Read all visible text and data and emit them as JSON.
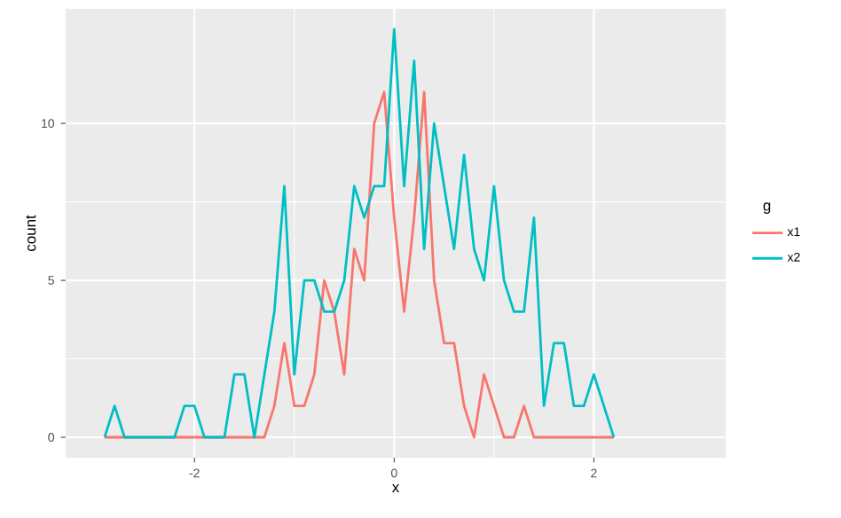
{
  "chart_data": {
    "type": "line",
    "xlabel": "x",
    "ylabel": "count",
    "legend_title": "g",
    "x": [
      -2.9,
      -2.8,
      -2.7,
      -2.6,
      -2.5,
      -2.4,
      -2.3,
      -2.2,
      -2.1,
      -2.0,
      -1.9,
      -1.8,
      -1.7,
      -1.6,
      -1.5,
      -1.4,
      -1.3,
      -1.2,
      -1.1,
      -1.0,
      -0.9,
      -0.8,
      -0.7,
      -0.6,
      -0.5,
      -0.4,
      -0.3,
      -0.2,
      -0.1,
      0.0,
      0.1,
      0.2,
      0.3,
      0.4,
      0.5,
      0.6,
      0.7,
      0.8,
      0.9,
      1.0,
      1.1,
      1.2,
      1.3,
      1.4,
      1.5,
      1.6,
      1.7,
      1.8,
      1.9,
      2.0,
      2.1,
      2.2
    ],
    "series": [
      {
        "name": "x1",
        "color": "#f8766d",
        "values": [
          0,
          0,
          0,
          0,
          0,
          0,
          0,
          0,
          0,
          0,
          0,
          0,
          0,
          0,
          0,
          0,
          0,
          1,
          3,
          1,
          1,
          2,
          5,
          4,
          2,
          6,
          5,
          10,
          11,
          7,
          4,
          7,
          11,
          5,
          3,
          3,
          1,
          0,
          2,
          1,
          0,
          0,
          1,
          0,
          0,
          0,
          0,
          0,
          0,
          0,
          0,
          0
        ]
      },
      {
        "name": "x2",
        "color": "#00bfc4",
        "values": [
          0,
          1,
          0,
          0,
          0,
          0,
          0,
          0,
          1,
          1,
          0,
          0,
          0,
          2,
          2,
          0,
          2,
          4,
          8,
          2,
          5,
          5,
          4,
          4,
          5,
          8,
          7,
          8,
          8,
          13,
          8,
          12,
          6,
          10,
          8,
          6,
          9,
          6,
          5,
          8,
          5,
          4,
          4,
          7,
          1,
          3,
          3,
          1,
          1,
          2,
          1,
          0
        ]
      }
    ],
    "xlim": [
      -3.29,
      3.32
    ],
    "ylim": [
      -0.65,
      13.65
    ],
    "xticks": [
      -2,
      0,
      2
    ],
    "yticks": [
      0,
      5,
      10
    ],
    "grid": true,
    "legend": "right",
    "marker": "none",
    "line_style": "solid"
  }
}
